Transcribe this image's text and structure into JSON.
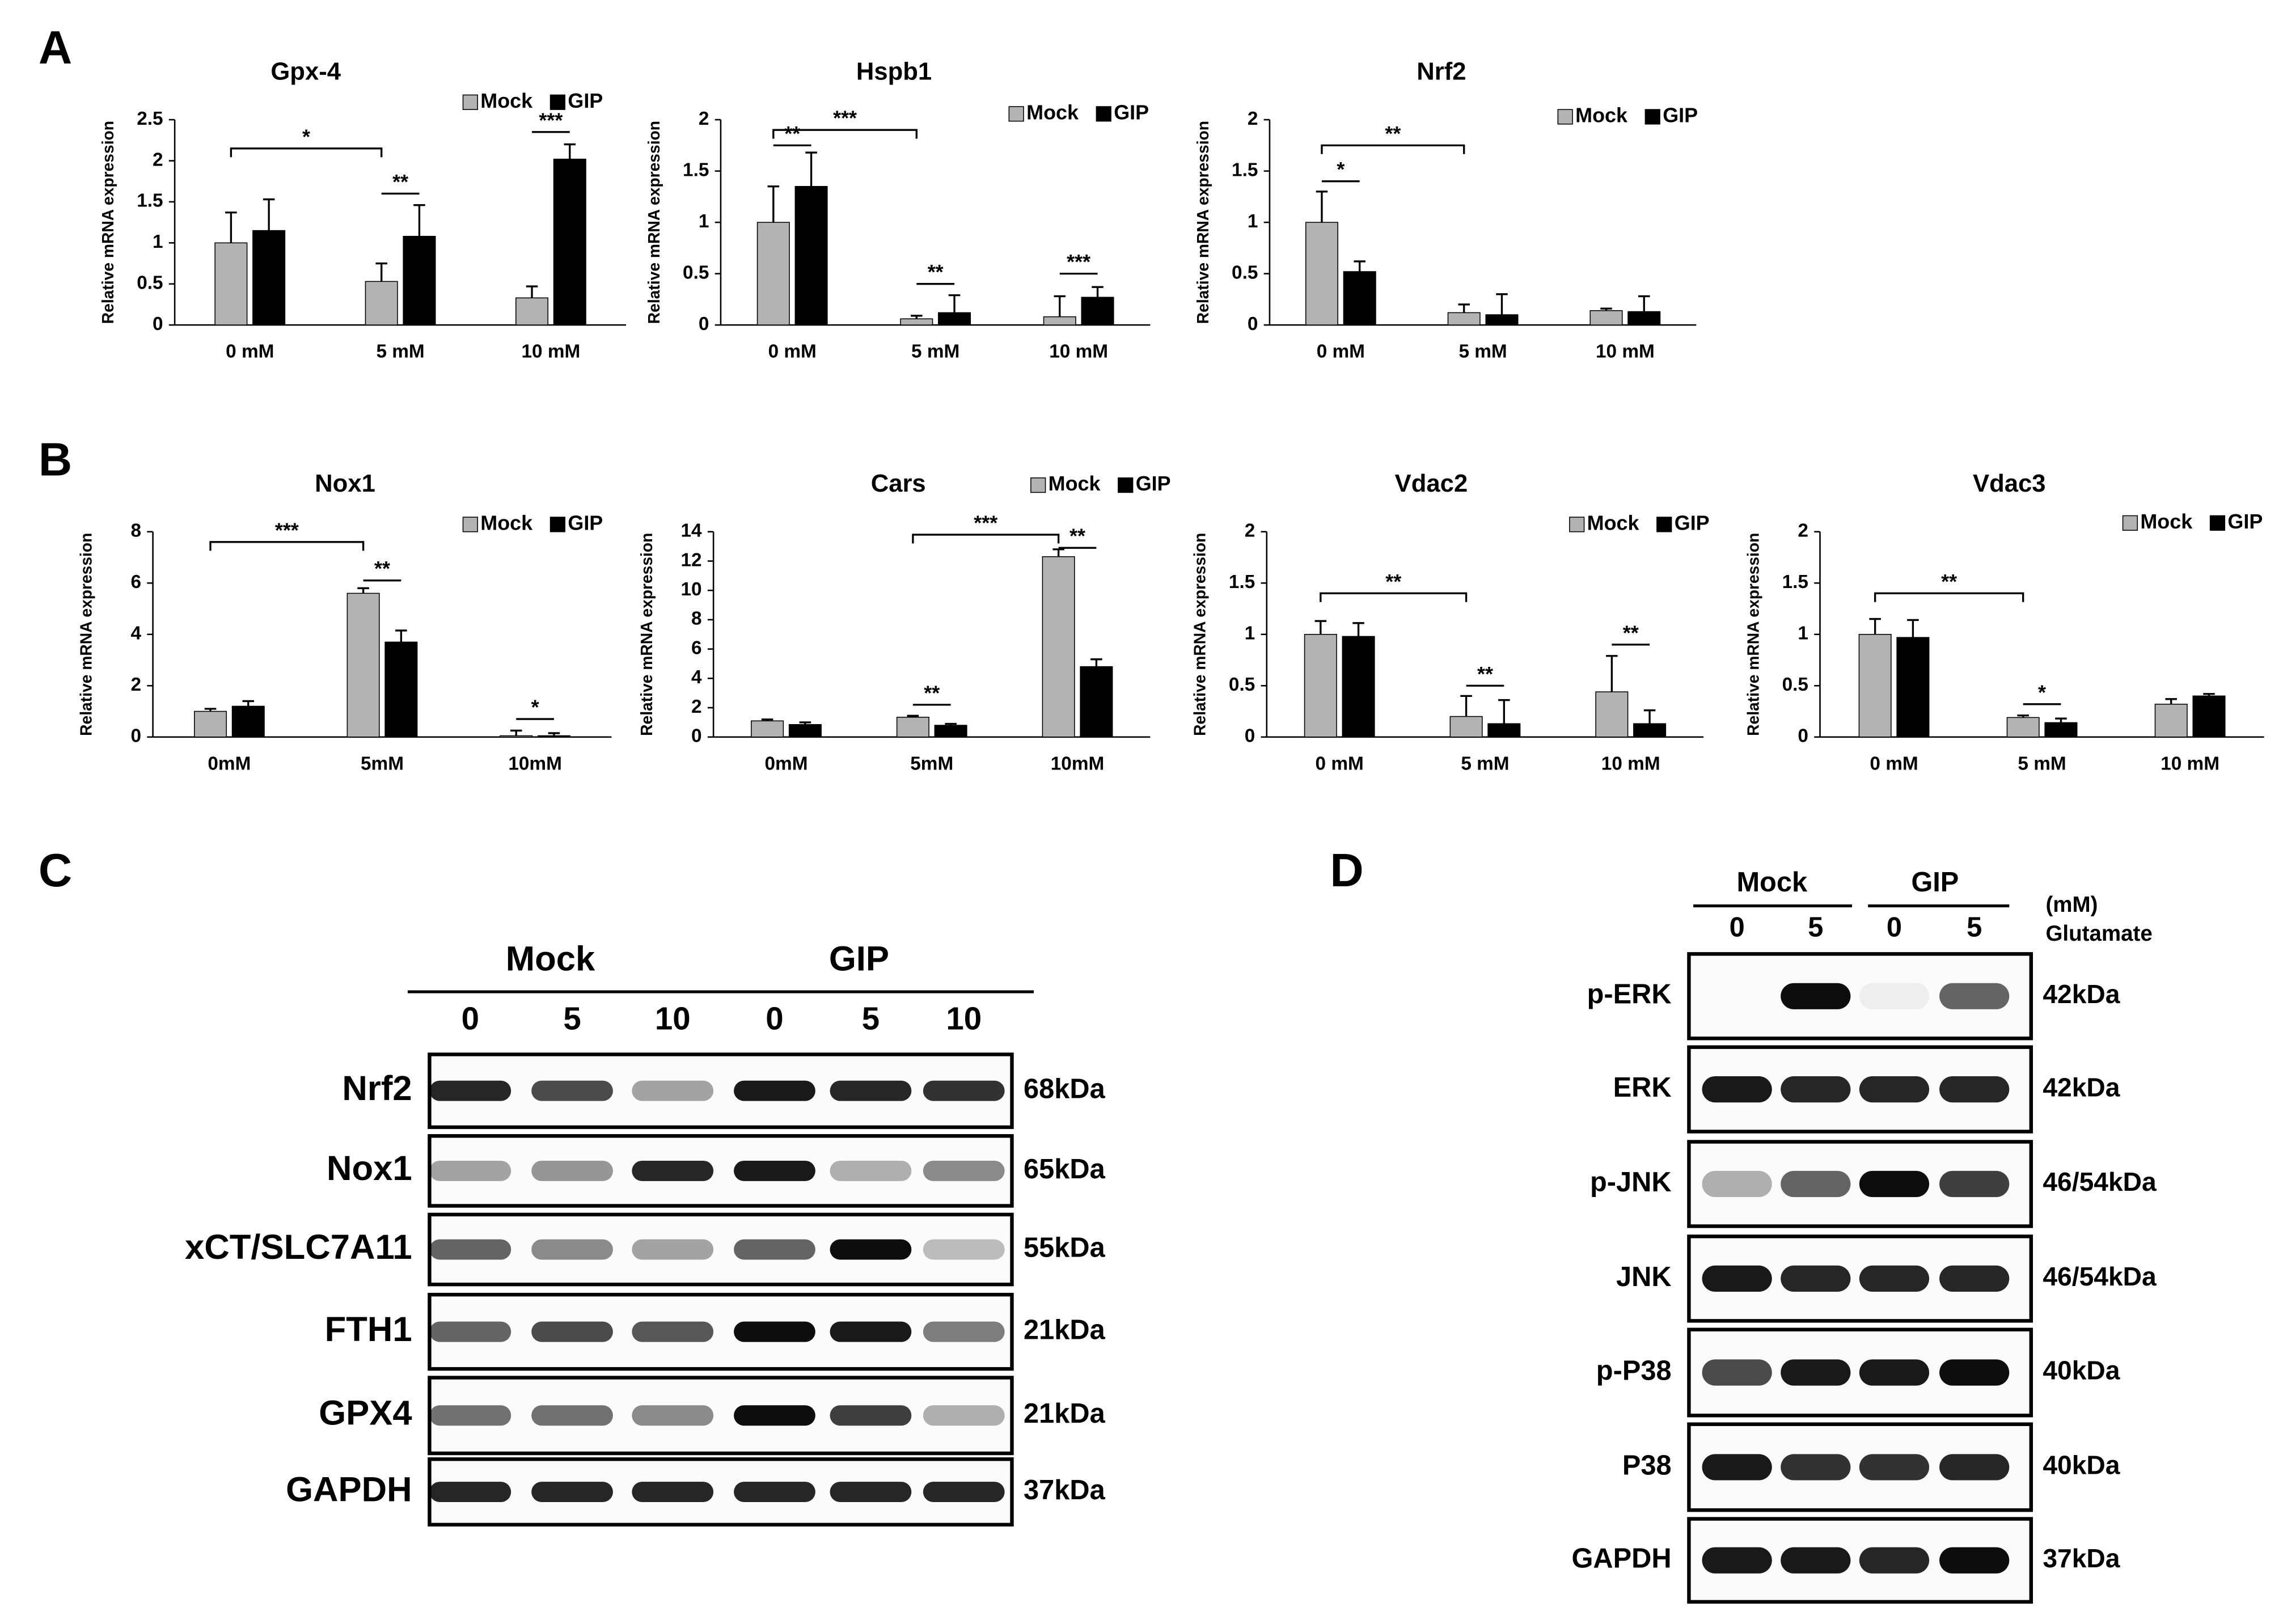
{
  "panels": [
    "A",
    "B",
    "C",
    "D"
  ],
  "chart_data": [
    {
      "type": "bar",
      "title": "Gpx-4",
      "y_label": "Relative mRNA expression",
      "categories": [
        "0 mM",
        "5 mM",
        "10 mM"
      ],
      "ylim": [
        0,
        2.5
      ],
      "yticks": [
        0,
        0.5,
        1,
        1.5,
        2,
        2.5
      ],
      "series": [
        {
          "name": "Mock",
          "color": "#b3b3b3",
          "values": [
            1.0,
            0.53,
            0.33
          ],
          "errors": [
            0.37,
            0.22,
            0.14
          ]
        },
        {
          "name": "GIP",
          "color": "#000000",
          "values": [
            1.15,
            1.08,
            2.02
          ],
          "errors": [
            0.38,
            0.38,
            0.18
          ]
        }
      ],
      "annotations": [
        {
          "text": "*",
          "y": 2.15,
          "from": [
            0,
            0
          ],
          "to": [
            1,
            0
          ]
        },
        {
          "text": "**",
          "y": 1.6,
          "from": [
            1,
            0
          ],
          "to": [
            1,
            1
          ]
        },
        {
          "text": "***",
          "y": 2.35,
          "from": [
            2,
            0
          ],
          "to": [
            2,
            1
          ]
        }
      ]
    },
    {
      "type": "bar",
      "title": "Hspb1",
      "y_label": "Relative mRNA expression",
      "categories": [
        "0 mM",
        "5 mM",
        "10 mM"
      ],
      "ylim": [
        0,
        2
      ],
      "yticks": [
        0,
        0.5,
        1,
        1.5,
        2
      ],
      "series": [
        {
          "name": "Mock",
          "color": "#b3b3b3",
          "values": [
            1.0,
            0.06,
            0.08
          ],
          "errors": [
            0.35,
            0.03,
            0.2
          ]
        },
        {
          "name": "GIP",
          "color": "#000000",
          "values": [
            1.35,
            0.12,
            0.27
          ],
          "errors": [
            0.33,
            0.17,
            0.1
          ]
        }
      ],
      "annotations": [
        {
          "text": "**",
          "y": 1.75,
          "from": [
            0,
            0
          ],
          "to": [
            0,
            1
          ]
        },
        {
          "text": "***",
          "y": 1.9,
          "from": [
            0,
            0
          ],
          "to": [
            1,
            0
          ]
        },
        {
          "text": "**",
          "y": 0.4,
          "from": [
            1,
            0
          ],
          "to": [
            1,
            1
          ]
        },
        {
          "text": "***",
          "y": 0.5,
          "from": [
            2,
            0
          ],
          "to": [
            2,
            1
          ]
        }
      ]
    },
    {
      "type": "bar",
      "title": "Nrf2",
      "y_label": "Relative mRNA expression",
      "categories": [
        "0 mM",
        "5 mM",
        "10 mM"
      ],
      "ylim": [
        0,
        2
      ],
      "yticks": [
        0,
        0.5,
        1,
        1.5,
        2
      ],
      "series": [
        {
          "name": "Mock",
          "color": "#b3b3b3",
          "values": [
            1.0,
            0.12,
            0.14
          ],
          "errors": [
            0.3,
            0.08,
            0.02
          ]
        },
        {
          "name": "GIP",
          "color": "#000000",
          "values": [
            0.52,
            0.1,
            0.13
          ],
          "errors": [
            0.1,
            0.2,
            0.15
          ]
        }
      ],
      "annotations": [
        {
          "text": "*",
          "y": 1.4,
          "from": [
            0,
            0
          ],
          "to": [
            0,
            1
          ]
        },
        {
          "text": "**",
          "y": 1.75,
          "from": [
            0,
            0
          ],
          "to": [
            1,
            0
          ]
        }
      ]
    },
    {
      "type": "bar",
      "title": "Nox1",
      "y_label": "Relative mRNA expression",
      "categories": [
        "0mM",
        "5mM",
        "10mM"
      ],
      "ylim": [
        0,
        8
      ],
      "yticks": [
        0,
        2,
        4,
        6,
        8
      ],
      "series": [
        {
          "name": "Mock",
          "color": "#b3b3b3",
          "values": [
            1.0,
            5.6,
            0.05
          ],
          "errors": [
            0.1,
            0.2,
            0.2
          ]
        },
        {
          "name": "GIP",
          "color": "#000000",
          "values": [
            1.2,
            3.7,
            0.05
          ],
          "errors": [
            0.2,
            0.45,
            0.1
          ]
        }
      ],
      "annotations": [
        {
          "text": "***",
          "y": 7.6,
          "from": [
            0,
            0
          ],
          "to": [
            1,
            0
          ]
        },
        {
          "text": "**",
          "y": 6.1,
          "from": [
            1,
            0
          ],
          "to": [
            1,
            1
          ]
        },
        {
          "text": "*",
          "y": 0.7,
          "from": [
            2,
            0
          ],
          "to": [
            2,
            1
          ]
        }
      ]
    },
    {
      "type": "bar",
      "title": "Cars",
      "y_label": "Relative mRNA expression",
      "categories": [
        "0mM",
        "5mM",
        "10mM"
      ],
      "ylim": [
        0,
        14
      ],
      "yticks": [
        0,
        2,
        4,
        6,
        8,
        10,
        12,
        14
      ],
      "series": [
        {
          "name": "Mock",
          "color": "#b3b3b3",
          "values": [
            1.1,
            1.35,
            12.3
          ],
          "errors": [
            0.1,
            0.1,
            0.5
          ]
        },
        {
          "name": "GIP",
          "color": "#000000",
          "values": [
            0.85,
            0.8,
            4.8
          ],
          "errors": [
            0.15,
            0.1,
            0.5
          ]
        }
      ],
      "annotations": [
        {
          "text": "***",
          "y": 13.8,
          "from": [
            1,
            0
          ],
          "to": [
            2,
            0
          ]
        },
        {
          "text": "**",
          "y": 12.9,
          "from": [
            2,
            0
          ],
          "to": [
            2,
            1
          ]
        },
        {
          "text": "**",
          "y": 2.2,
          "from": [
            1,
            0
          ],
          "to": [
            1,
            1
          ]
        }
      ]
    },
    {
      "type": "bar",
      "title": "Vdac2",
      "y_label": "Relative mRNA expression",
      "categories": [
        "0 mM",
        "5 mM",
        "10 mM"
      ],
      "ylim": [
        0,
        2
      ],
      "yticks": [
        0,
        0.5,
        1,
        1.5,
        2
      ],
      "series": [
        {
          "name": "Mock",
          "color": "#b3b3b3",
          "values": [
            1.0,
            0.2,
            0.44
          ],
          "errors": [
            0.13,
            0.2,
            0.35
          ]
        },
        {
          "name": "GIP",
          "color": "#000000",
          "values": [
            0.98,
            0.13,
            0.13
          ],
          "errors": [
            0.13,
            0.23,
            0.13
          ]
        }
      ],
      "annotations": [
        {
          "text": "**",
          "y": 1.4,
          "from": [
            0,
            0
          ],
          "to": [
            1,
            0
          ]
        },
        {
          "text": "**",
          "y": 0.5,
          "from": [
            1,
            0
          ],
          "to": [
            1,
            1
          ]
        },
        {
          "text": "**",
          "y": 0.9,
          "from": [
            2,
            0
          ],
          "to": [
            2,
            1
          ]
        }
      ]
    },
    {
      "type": "bar",
      "title": "Vdac3",
      "y_label": "Relative mRNA expression",
      "categories": [
        "0 mM",
        "5 mM",
        "10 mM"
      ],
      "ylim": [
        0,
        2
      ],
      "yticks": [
        0,
        0.5,
        1,
        1.5,
        2
      ],
      "series": [
        {
          "name": "Mock",
          "color": "#b3b3b3",
          "values": [
            1.0,
            0.19,
            0.32
          ],
          "errors": [
            0.15,
            0.02,
            0.05
          ]
        },
        {
          "name": "GIP",
          "color": "#000000",
          "values": [
            0.97,
            0.14,
            0.4
          ],
          "errors": [
            0.17,
            0.04,
            0.02
          ]
        }
      ],
      "annotations": [
        {
          "text": "**",
          "y": 1.4,
          "from": [
            0,
            0
          ],
          "to": [
            1,
            0
          ]
        },
        {
          "text": "*",
          "y": 0.32,
          "from": [
            1,
            0
          ],
          "to": [
            1,
            1
          ]
        }
      ]
    }
  ],
  "blot_c": {
    "groups": [
      "Mock",
      "GIP"
    ],
    "lanes": [
      0,
      5,
      10,
      0,
      5,
      10
    ],
    "rows": [
      {
        "name": "Nrf2",
        "size": "68kDa"
      },
      {
        "name": "Nox1",
        "size": "65kDa"
      },
      {
        "name": "xCT/SLC7A11",
        "size": "55kDa"
      },
      {
        "name": "FTH1",
        "size": "21kDa"
      },
      {
        "name": "GPX4",
        "size": "21kDa"
      },
      {
        "name": "GAPDH",
        "size": "37kDa"
      }
    ]
  },
  "blot_d": {
    "groups": [
      "Mock",
      "GIP"
    ],
    "lanes": [
      0,
      5,
      0,
      5
    ],
    "unit": "(mM)",
    "treatment": "Glutamate",
    "rows": [
      {
        "name": "p-ERK",
        "size": "42kDa"
      },
      {
        "name": "ERK",
        "size": "42kDa"
      },
      {
        "name": "p-JNK",
        "size": "46/54kDa"
      },
      {
        "name": "JNK",
        "size": "46/54kDa"
      },
      {
        "name": "p-P38",
        "size": "40kDa"
      },
      {
        "name": "P38",
        "size": "40kDa"
      },
      {
        "name": "GAPDH",
        "size": "37kDa"
      }
    ]
  }
}
